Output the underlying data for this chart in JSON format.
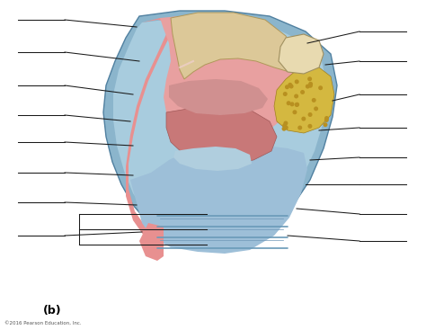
{
  "label_b": "(b)",
  "copyright": "©2016 Pearson Education, Inc.",
  "bg_color": "#ffffff",
  "fig_width": 4.74,
  "fig_height": 3.67,
  "dpi": 100,
  "colors": {
    "blue_outer": "#8bb5cc",
    "blue_inner": "#a8ccde",
    "blue_pale": "#c5dce8",
    "pink_main": "#e8a0a0",
    "pink_dark": "#d08080",
    "pink_stripe": "#e89090",
    "cream": "#dcc898",
    "cream_light": "#e8dab0",
    "yellow_fat": "#c8a830",
    "yellow_fat2": "#d4b840",
    "line_color": "#1a1a1a",
    "blue_mid": "#6a9ab8",
    "blue_edge": "#5080a0"
  }
}
